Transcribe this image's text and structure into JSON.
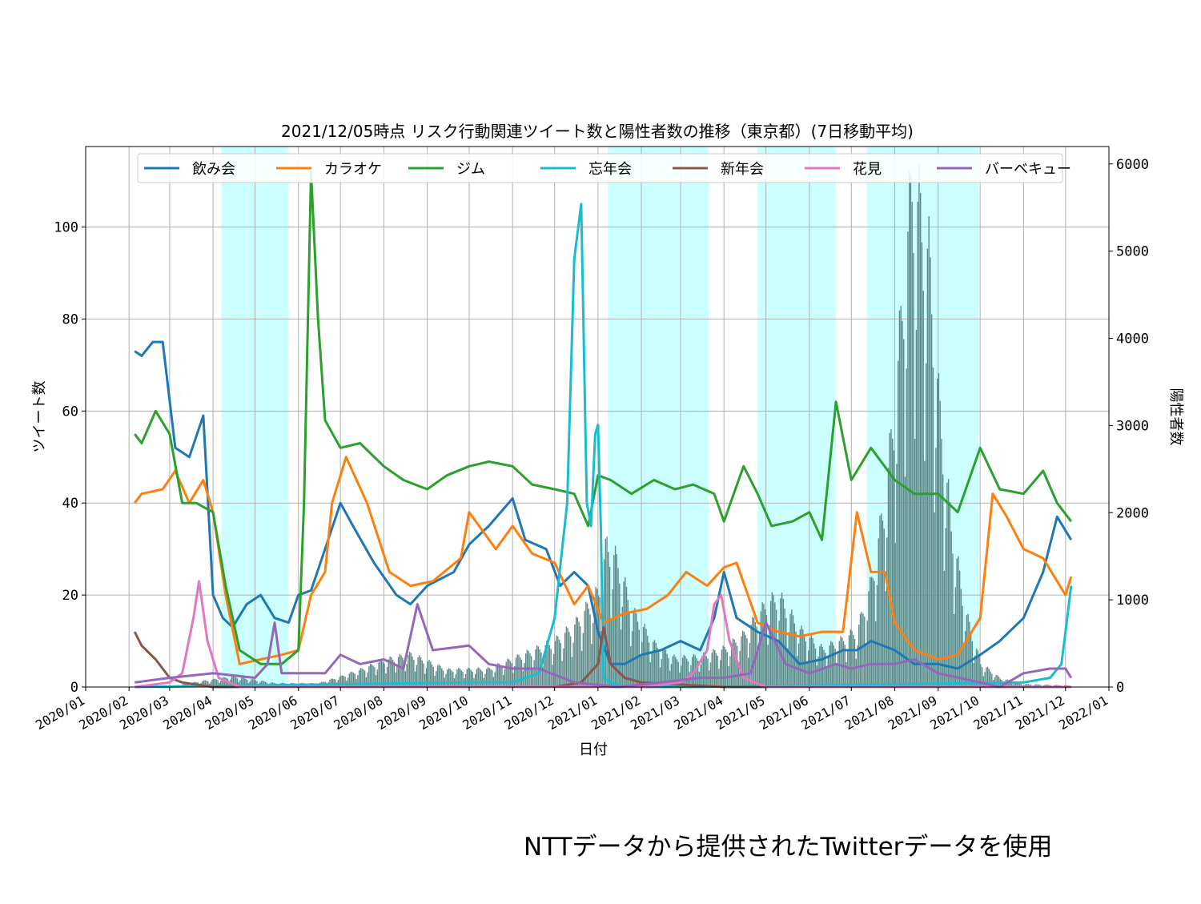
{
  "chart_data": {
    "type": "line",
    "title": "2021/12/05時点 リスク行動関連ツイート数と陽性者数の推移（東京都）(7日移動平均)",
    "xlabel": "日付",
    "ylabel": "ツイート数",
    "y2label": "陽性者数",
    "x_range": [
      "2020-01-01",
      "2022-01-01"
    ],
    "ylim": [
      0,
      117.5
    ],
    "y2lim": [
      0,
      6200
    ],
    "yticks": [
      0,
      20,
      40,
      60,
      80,
      100
    ],
    "y2ticks": [
      0,
      1000,
      2000,
      3000,
      4000,
      5000,
      6000
    ],
    "xticks": [
      "2020/01",
      "2020/02",
      "2020/03",
      "2020/04",
      "2020/05",
      "2020/06",
      "2020/07",
      "2020/08",
      "2020/09",
      "2020/10",
      "2020/11",
      "2020/12",
      "2021/01",
      "2021/02",
      "2021/03",
      "2021/04",
      "2021/05",
      "2021/06",
      "2021/07",
      "2021/08",
      "2021/09",
      "2021/10",
      "2021/11",
      "2021/12",
      "2022/01"
    ],
    "grid": true,
    "legend_position": "top",
    "shaded_periods": [
      {
        "start": "2020-04-07",
        "end": "2020-05-25"
      },
      {
        "start": "2021-01-08",
        "end": "2021-03-21"
      },
      {
        "start": "2021-04-25",
        "end": "2021-06-20"
      },
      {
        "start": "2021-07-12",
        "end": "2021-09-30"
      }
    ],
    "shade_color": "#ccffff",
    "bars": {
      "name": "陽性者数",
      "color": "#5c8a88",
      "axis": "y2",
      "x": [
        "2020-03-01",
        "2020-04-15",
        "2020-05-15",
        "2020-06-15",
        "2020-07-01",
        "2020-07-15",
        "2020-08-01",
        "2020-08-20",
        "2020-09-15",
        "2020-10-15",
        "2020-11-15",
        "2020-12-01",
        "2020-12-15",
        "2021-01-01",
        "2021-01-07",
        "2021-01-15",
        "2021-01-25",
        "2021-02-10",
        "2021-02-25",
        "2021-03-15",
        "2021-04-01",
        "2021-04-15",
        "2021-05-01",
        "2021-05-10",
        "2021-05-25",
        "2021-06-10",
        "2021-06-25",
        "2021-07-05",
        "2021-07-15",
        "2021-07-25",
        "2021-08-01",
        "2021-08-07",
        "2021-08-13",
        "2021-08-18",
        "2021-08-25",
        "2021-09-01",
        "2021-09-10",
        "2021-09-20",
        "2021-10-01",
        "2021-10-15",
        "2021-11-01",
        "2021-12-05"
      ],
      "values": [
        10,
        110,
        40,
        40,
        110,
        180,
        280,
        340,
        180,
        190,
        380,
        480,
        650,
        1000,
        1500,
        1300,
        800,
        450,
        300,
        320,
        400,
        550,
        870,
        950,
        600,
        400,
        500,
        600,
        1100,
        2000,
        3000,
        4200,
        5300,
        5000,
        4500,
        3000,
        1700,
        800,
        250,
        90,
        30,
        15
      ]
    },
    "series": [
      {
        "name": "飲み会",
        "color": "#1f77b4",
        "x": [
          "2020-02-05",
          "2020-02-10",
          "2020-02-18",
          "2020-02-25",
          "2020-03-05",
          "2020-03-15",
          "2020-03-25",
          "2020-04-01",
          "2020-04-08",
          "2020-04-15",
          "2020-04-25",
          "2020-05-05",
          "2020-05-15",
          "2020-05-25",
          "2020-06-01",
          "2020-06-10",
          "2020-06-20",
          "2020-07-01",
          "2020-07-10",
          "2020-07-25",
          "2020-08-10",
          "2020-08-20",
          "2020-09-01",
          "2020-09-20",
          "2020-10-01",
          "2020-10-15",
          "2020-11-01",
          "2020-11-10",
          "2020-11-25",
          "2020-12-05",
          "2020-12-15",
          "2020-12-25",
          "2021-01-01",
          "2021-01-10",
          "2021-01-20",
          "2021-02-01",
          "2021-02-15",
          "2021-03-01",
          "2021-03-15",
          "2021-03-25",
          "2021-04-01",
          "2021-04-10",
          "2021-04-25",
          "2021-05-10",
          "2021-05-25",
          "2021-06-10",
          "2021-06-25",
          "2021-07-05",
          "2021-07-15",
          "2021-08-01",
          "2021-08-15",
          "2021-09-01",
          "2021-09-15",
          "2021-10-01",
          "2021-10-15",
          "2021-11-01",
          "2021-11-15",
          "2021-11-25",
          "2021-12-05"
        ],
        "values": [
          73,
          72,
          75,
          75,
          52,
          50,
          59,
          20,
          15,
          13,
          18,
          20,
          15,
          14,
          20,
          21,
          30,
          40,
          35,
          27,
          20,
          18,
          22,
          25,
          31,
          35,
          41,
          32,
          30,
          22,
          25,
          22,
          12,
          5,
          5,
          7,
          8,
          10,
          8,
          15,
          25,
          15,
          12,
          10,
          5,
          6,
          8,
          8,
          10,
          8,
          5,
          5,
          4,
          7,
          10,
          15,
          25,
          37,
          32
        ]
      },
      {
        "name": "カラオケ",
        "color": "#ff7f0e",
        "x": [
          "2020-02-05",
          "2020-02-10",
          "2020-02-25",
          "2020-03-05",
          "2020-03-15",
          "2020-03-25",
          "2020-04-01",
          "2020-04-10",
          "2020-04-20",
          "2020-05-05",
          "2020-05-20",
          "2020-06-01",
          "2020-06-10",
          "2020-06-20",
          "2020-06-25",
          "2020-07-05",
          "2020-07-20",
          "2020-08-05",
          "2020-08-20",
          "2020-09-05",
          "2020-09-25",
          "2020-10-01",
          "2020-10-20",
          "2020-11-01",
          "2020-11-15",
          "2020-12-01",
          "2020-12-15",
          "2020-12-25",
          "2021-01-05",
          "2021-01-20",
          "2021-02-05",
          "2021-02-20",
          "2021-03-05",
          "2021-03-20",
          "2021-04-01",
          "2021-04-10",
          "2021-04-25",
          "2021-05-10",
          "2021-05-25",
          "2021-06-10",
          "2021-06-25",
          "2021-07-05",
          "2021-07-15",
          "2021-07-25",
          "2021-08-01",
          "2021-08-15",
          "2021-09-01",
          "2021-09-15",
          "2021-10-01",
          "2021-10-10",
          "2021-10-20",
          "2021-11-01",
          "2021-11-15",
          "2021-12-01",
          "2021-12-05"
        ],
        "values": [
          40,
          42,
          43,
          47,
          40,
          45,
          38,
          20,
          5,
          6,
          7,
          8,
          20,
          25,
          40,
          50,
          40,
          25,
          22,
          23,
          28,
          38,
          30,
          35,
          29,
          27,
          18,
          22,
          14,
          16,
          17,
          20,
          25,
          22,
          26,
          27,
          14,
          12,
          11,
          12,
          12,
          38,
          25,
          25,
          14,
          8,
          6,
          7,
          15,
          42,
          37,
          30,
          28,
          20,
          24
        ]
      },
      {
        "name": "ジム",
        "color": "#2ca02c",
        "x": [
          "2020-02-05",
          "2020-02-10",
          "2020-02-20",
          "2020-03-01",
          "2020-03-10",
          "2020-03-20",
          "2020-04-01",
          "2020-04-10",
          "2020-04-20",
          "2020-05-05",
          "2020-05-20",
          "2020-06-01",
          "2020-06-05",
          "2020-06-10",
          "2020-06-15",
          "2020-06-20",
          "2020-07-01",
          "2020-07-15",
          "2020-08-01",
          "2020-08-15",
          "2020-09-01",
          "2020-09-15",
          "2020-10-01",
          "2020-10-15",
          "2020-11-01",
          "2020-11-15",
          "2020-12-01",
          "2020-12-15",
          "2020-12-25",
          "2021-01-01",
          "2021-01-10",
          "2021-01-25",
          "2021-02-10",
          "2021-02-25",
          "2021-03-10",
          "2021-03-25",
          "2021-04-01",
          "2021-04-15",
          "2021-04-25",
          "2021-05-05",
          "2021-05-20",
          "2021-06-01",
          "2021-06-10",
          "2021-06-20",
          "2021-07-01",
          "2021-07-15",
          "2021-08-01",
          "2021-08-15",
          "2021-09-01",
          "2021-09-15",
          "2021-10-01",
          "2021-10-15",
          "2021-11-01",
          "2021-11-15",
          "2021-11-25",
          "2021-12-05"
        ],
        "values": [
          55,
          53,
          60,
          55,
          40,
          40,
          38,
          22,
          8,
          5,
          5,
          8,
          40,
          112,
          80,
          58,
          52,
          53,
          48,
          45,
          43,
          46,
          48,
          49,
          48,
          44,
          43,
          42,
          35,
          46,
          45,
          42,
          45,
          43,
          44,
          42,
          36,
          48,
          42,
          35,
          36,
          38,
          32,
          62,
          45,
          52,
          45,
          42,
          42,
          38,
          52,
          43,
          42,
          47,
          40,
          36
        ]
      },
      {
        "name": "忘年会",
        "color": "#17becf",
        "x": [
          "2020-02-05",
          "2020-10-01",
          "2020-11-01",
          "2020-11-20",
          "2020-12-01",
          "2020-12-10",
          "2020-12-15",
          "2020-12-20",
          "2020-12-24",
          "2020-12-27",
          "2020-12-30",
          "2021-01-01",
          "2021-01-03",
          "2021-01-05",
          "2021-01-10",
          "2021-01-20",
          "2021-03-15",
          "2021-11-01",
          "2021-11-20",
          "2021-11-28",
          "2021-12-01",
          "2021-12-05"
        ],
        "values": [
          0,
          1,
          1,
          3,
          15,
          40,
          93,
          105,
          40,
          35,
          55,
          57,
          35,
          2,
          1,
          0,
          0,
          1,
          2,
          5,
          12,
          22
        ]
      },
      {
        "name": "新年会",
        "color": "#8c564b",
        "x": [
          "2020-02-05",
          "2020-02-10",
          "2020-02-20",
          "2020-03-01",
          "2020-03-10",
          "2020-04-01",
          "2020-06-01",
          "2020-12-01",
          "2020-12-20",
          "2021-01-01",
          "2021-01-05",
          "2021-01-10",
          "2021-01-20",
          "2021-02-01",
          "2021-04-01",
          "2021-12-05"
        ],
        "values": [
          12,
          9,
          6,
          2,
          1,
          0,
          0,
          0,
          1,
          5,
          13,
          5,
          2,
          1,
          0,
          0
        ]
      },
      {
        "name": "花見",
        "color": "#e377c2",
        "x": [
          "2020-02-05",
          "2020-03-01",
          "2020-03-10",
          "2020-03-18",
          "2020-03-22",
          "2020-03-28",
          "2020-04-05",
          "2020-04-20",
          "2021-02-01",
          "2021-03-01",
          "2021-03-10",
          "2021-03-20",
          "2021-03-25",
          "2021-03-30",
          "2021-04-05",
          "2021-04-15",
          "2021-05-01",
          "2021-12-05"
        ],
        "values": [
          0,
          1,
          3,
          15,
          23,
          10,
          2,
          0,
          0,
          1,
          3,
          8,
          18,
          20,
          10,
          2,
          0,
          0
        ]
      },
      {
        "name": "バーベキュー",
        "color": "#9467bd",
        "x": [
          "2020-02-05",
          "2020-03-01",
          "2020-04-01",
          "2020-05-01",
          "2020-05-10",
          "2020-05-15",
          "2020-05-20",
          "2020-06-01",
          "2020-06-20",
          "2020-07-01",
          "2020-07-15",
          "2020-08-01",
          "2020-08-15",
          "2020-08-25",
          "2020-09-05",
          "2020-10-01",
          "2020-10-15",
          "2020-11-01",
          "2020-11-20",
          "2020-12-15",
          "2021-01-15",
          "2021-02-15",
          "2021-03-15",
          "2021-04-01",
          "2021-04-20",
          "2021-05-01",
          "2021-05-15",
          "2021-06-01",
          "2021-06-20",
          "2021-07-01",
          "2021-07-15",
          "2021-08-01",
          "2021-08-15",
          "2021-09-01",
          "2021-10-01",
          "2021-10-15",
          "2021-11-01",
          "2021-11-20",
          "2021-12-01",
          "2021-12-05"
        ],
        "values": [
          1,
          2,
          3,
          2,
          5,
          14,
          3,
          3,
          3,
          7,
          5,
          6,
          4,
          18,
          8,
          9,
          5,
          4,
          4,
          1,
          0,
          1,
          2,
          2,
          3,
          14,
          5,
          3,
          5,
          4,
          5,
          5,
          6,
          3,
          1,
          0,
          3,
          4,
          4,
          2
        ]
      }
    ]
  },
  "footer": {
    "credit": "NTTデータから提供されたTwitterデータを使用"
  }
}
